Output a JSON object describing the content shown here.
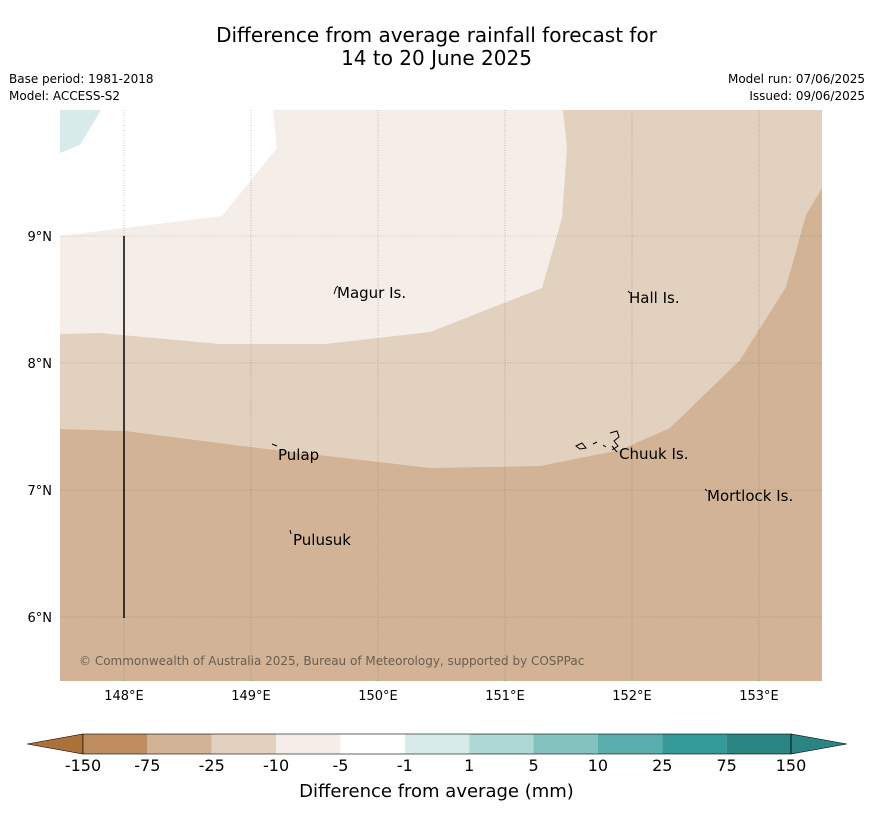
{
  "title": {
    "line1": "Difference from average rainfall forecast for",
    "line2": "14 to 20 June 2025"
  },
  "meta": {
    "base_period": "Base period: 1981-2018",
    "model": "Model: ACCESS-S2",
    "model_run": "Model run: 07/06/2025",
    "issued": "Issued: 09/06/2025"
  },
  "map": {
    "lon_labels": [
      "148°E",
      "149°E",
      "150°E",
      "151°E",
      "152°E",
      "153°E"
    ],
    "lat_labels": [
      "9°N",
      "8°N",
      "7°N",
      "6°N"
    ],
    "places": [
      "Magur Is.",
      "Hall Is.",
      "Pulap",
      "Chuuk Is.",
      "Mortlock Is.",
      "Pulusuk"
    ],
    "copyright": "© Commonwealth of Australia 2025, Bureau of Meteorology, supported by COSPPac",
    "colors": {
      "minus_10_to_minus_25": "#d2b396",
      "minus_5_to_minus_10": "#e3d1c0",
      "minus_1_to_minus_5": "#f5ede8",
      "neutral": "#ffffff",
      "plus_1_to_plus_5": "#d6ebea"
    }
  },
  "colorbar": {
    "title": "Difference from average (mm)",
    "ticks": [
      "-150",
      "-75",
      "-25",
      "-10",
      "-5",
      "-1",
      "1",
      "5",
      "10",
      "25",
      "75",
      "150"
    ],
    "colors": [
      "#ab7139",
      "#be8d60",
      "#d2b396",
      "#e3d1c0",
      "#f5ede8",
      "#ffffff",
      "#d6ebea",
      "#add8d6",
      "#83c2bf",
      "#5aaeab",
      "#339a97",
      "#2a8582"
    ]
  }
}
